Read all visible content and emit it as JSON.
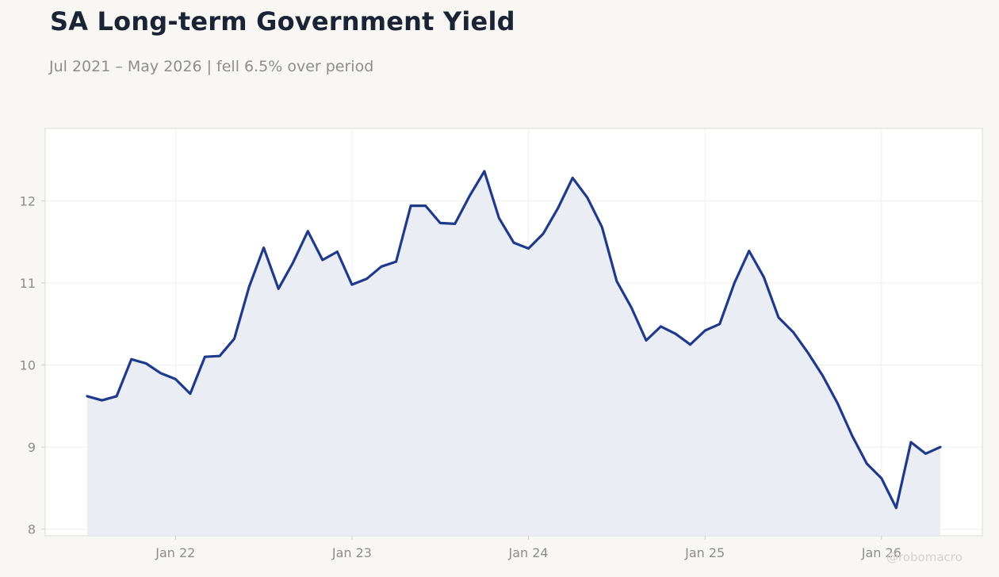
{
  "title": "SA Long-term Government Yield",
  "subtitle": "Jul 2021 – May 2026 | fell 6.5% over period",
  "watermark": "@robomacro",
  "colors": {
    "line": "#1f3a8a",
    "fill": "#e8eaf3",
    "background": "#f8f7f4",
    "plot_background": "#ffffff",
    "grid": "#eeeeee",
    "text": "#1b2434",
    "muted": "#8f8d88"
  },
  "chart_data": {
    "type": "area",
    "title": "SA Long-term Government Yield",
    "subtitle": "Jul 2021 – May 2026 | fell 6.5% over period",
    "xlabel": "",
    "ylabel": "",
    "ylim": [
      7.92,
      12.68
    ],
    "grid": true,
    "legend": "none",
    "x_ticks": [
      "Jan 22",
      "Jan 23",
      "Jan 24",
      "Jan 25",
      "Jan 26"
    ],
    "y_ticks": [
      8,
      9,
      10,
      11,
      12
    ],
    "series": [
      {
        "x": [
          "2021-07",
          "2021-08",
          "2021-09",
          "2021-10",
          "2021-11",
          "2021-12",
          "2022-01",
          "2022-02",
          "2022-03",
          "2022-04",
          "2022-05",
          "2022-06",
          "2022-07",
          "2022-08",
          "2022-09",
          "2022-10",
          "2022-11",
          "2022-12",
          "2023-01",
          "2023-02",
          "2023-03",
          "2023-04",
          "2023-05",
          "2023-06",
          "2023-07",
          "2023-08",
          "2023-09",
          "2023-10",
          "2023-11",
          "2023-12",
          "2024-01",
          "2024-02",
          "2024-03",
          "2024-04",
          "2024-05",
          "2024-06",
          "2024-07",
          "2024-08",
          "2024-09",
          "2024-10",
          "2024-11",
          "2024-12",
          "2025-01",
          "2025-02",
          "2025-03",
          "2025-04",
          "2025-05",
          "2025-06",
          "2025-07",
          "2025-08",
          "2025-09",
          "2025-10",
          "2025-11",
          "2025-12",
          "2026-01",
          "2026-02",
          "2026-03",
          "2026-04",
          "2026-05"
        ],
        "values": [
          9.62,
          9.57,
          9.62,
          10.07,
          10.02,
          9.9,
          9.83,
          9.65,
          10.1,
          10.11,
          10.32,
          10.95,
          11.43,
          10.93,
          11.25,
          11.63,
          11.28,
          11.38,
          10.98,
          11.05,
          11.2,
          11.26,
          11.94,
          11.94,
          11.73,
          11.72,
          12.06,
          12.36,
          11.79,
          11.49,
          11.42,
          11.6,
          11.91,
          12.28,
          12.04,
          11.68,
          11.02,
          10.7,
          10.3,
          10.47,
          10.38,
          10.25,
          10.42,
          10.5,
          11.0,
          11.39,
          11.07,
          10.58,
          10.4,
          10.15,
          9.87,
          9.54,
          9.14,
          8.8,
          8.62,
          8.26,
          9.06,
          8.92,
          9.0
        ]
      }
    ]
  }
}
